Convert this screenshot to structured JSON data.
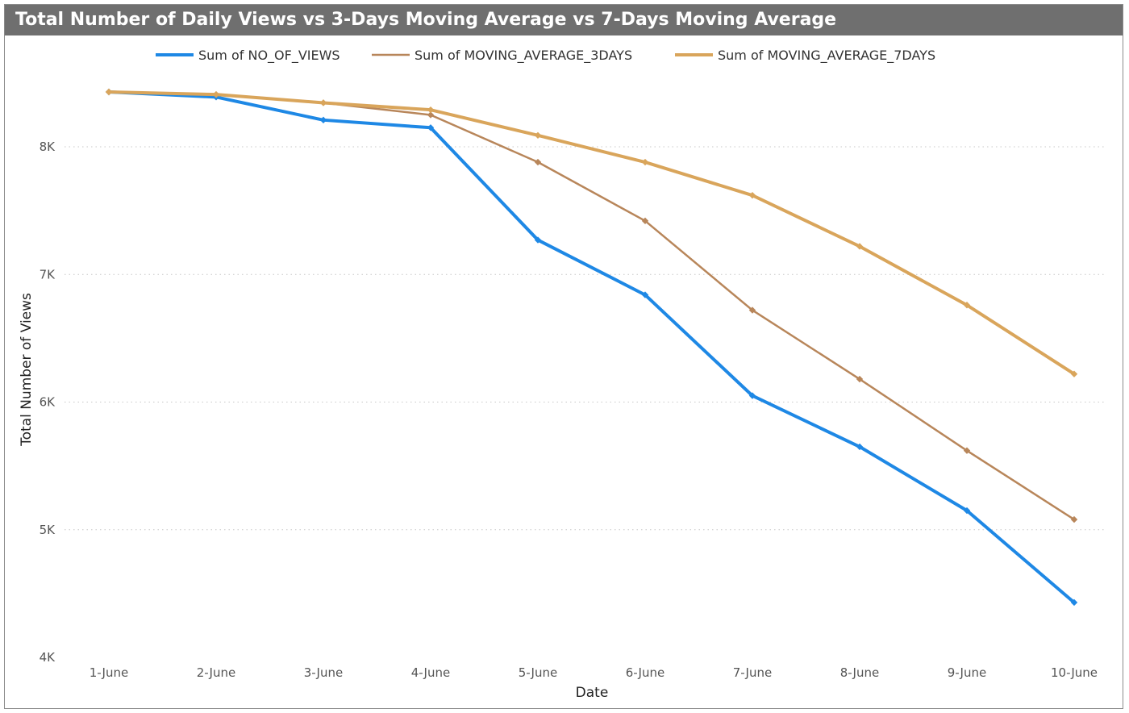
{
  "chart_data": {
    "type": "line",
    "title": "Total Number of Daily Views vs 3-Days Moving Average vs 7-Days Moving Average",
    "xlabel": "Date",
    "ylabel": "Total Number of Views",
    "categories": [
      "1-June",
      "2-June",
      "3-June",
      "4-June",
      "5-June",
      "6-June",
      "7-June",
      "8-June",
      "9-June",
      "10-June"
    ],
    "yticks": [
      {
        "value": 4000,
        "label": "4K"
      },
      {
        "value": 5000,
        "label": "5K"
      },
      {
        "value": 6000,
        "label": "6K"
      },
      {
        "value": 7000,
        "label": "7K"
      },
      {
        "value": 8000,
        "label": "8K"
      }
    ],
    "ylim": [
      4000,
      8430
    ],
    "grid": true,
    "legend_position": "top-center",
    "series": [
      {
        "name": "Sum of NO_OF_VIEWS",
        "color": "#1e88e5",
        "width": 4,
        "values": [
          8430,
          8390,
          8210,
          8150,
          7270,
          6840,
          6050,
          5650,
          5150,
          4430
        ]
      },
      {
        "name": "Sum of MOVING_AVERAGE_3DAYS",
        "color": "#b8865a",
        "width": 2.5,
        "values": [
          8430,
          8410,
          8345,
          8250,
          7880,
          7420,
          6720,
          6180,
          5620,
          5080
        ]
      },
      {
        "name": "Sum of MOVING_AVERAGE_7DAYS",
        "color": "#d9a55b",
        "width": 4,
        "values": [
          8430,
          8410,
          8345,
          8290,
          8090,
          7880,
          7620,
          7220,
          6760,
          6220
        ]
      }
    ]
  }
}
